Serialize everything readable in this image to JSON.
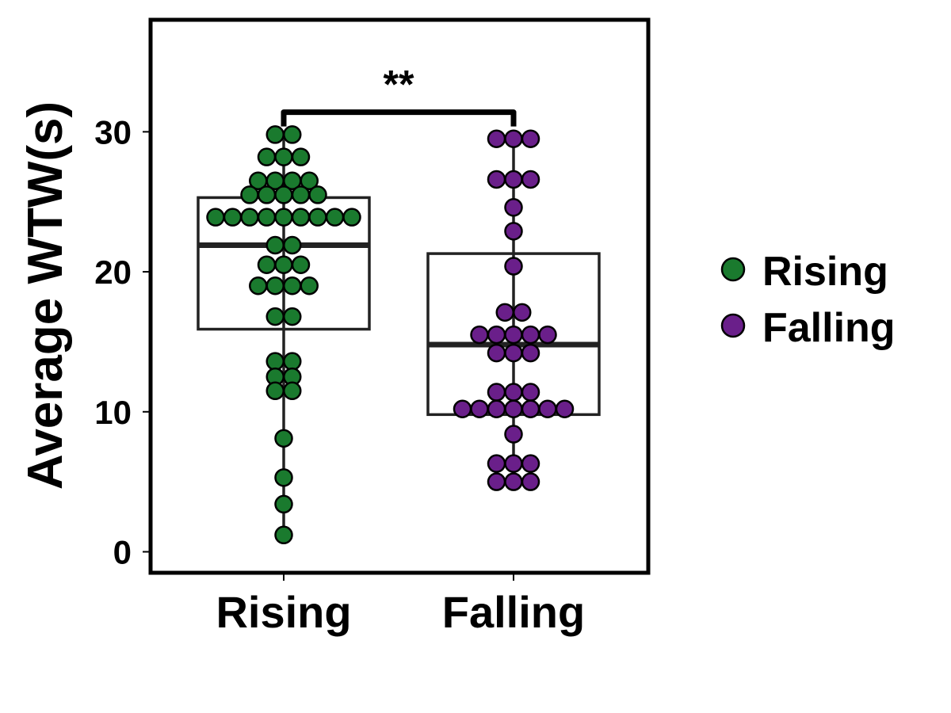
{
  "chart_data": {
    "type": "box",
    "categories": [
      "Rising",
      "Falling"
    ],
    "ylabel": "Average WTW(s)",
    "ylim": [
      -1.5,
      38
    ],
    "yticks": [
      0,
      10,
      20,
      30
    ],
    "colors": {
      "Rising": "#1a7a2e",
      "Falling": "#6a1f8a",
      "box_line": "#222222"
    },
    "series": [
      {
        "name": "Rising",
        "box": {
          "q1": 15.9,
          "median": 21.9,
          "q3": 25.3,
          "whisker_low": 1.2,
          "whisker_high": 29.8
        },
        "points": [
          {
            "y": 29.8,
            "n": 2
          },
          {
            "y": 28.2,
            "n": 3
          },
          {
            "y": 26.5,
            "n": 4
          },
          {
            "y": 25.5,
            "n": 5
          },
          {
            "y": 23.9,
            "n": 9
          },
          {
            "y": 21.9,
            "n": 2
          },
          {
            "y": 20.5,
            "n": 3
          },
          {
            "y": 19.0,
            "n": 4
          },
          {
            "y": 16.8,
            "n": 2
          },
          {
            "y": 13.6,
            "n": 2
          },
          {
            "y": 12.5,
            "n": 2
          },
          {
            "y": 11.5,
            "n": 2
          },
          {
            "y": 8.1,
            "n": 1
          },
          {
            "y": 5.3,
            "n": 1
          },
          {
            "y": 3.4,
            "n": 1
          },
          {
            "y": 1.2,
            "n": 1
          }
        ]
      },
      {
        "name": "Falling",
        "box": {
          "q1": 9.8,
          "median": 14.8,
          "q3": 21.3,
          "whisker_low": 5.0,
          "whisker_high": 29.5
        },
        "points": [
          {
            "y": 29.5,
            "n": 3
          },
          {
            "y": 26.6,
            "n": 3
          },
          {
            "y": 24.6,
            "n": 1
          },
          {
            "y": 22.9,
            "n": 1
          },
          {
            "y": 20.4,
            "n": 1
          },
          {
            "y": 17.1,
            "n": 2
          },
          {
            "y": 15.5,
            "n": 5
          },
          {
            "y": 14.2,
            "n": 3
          },
          {
            "y": 11.4,
            "n": 3
          },
          {
            "y": 10.2,
            "n": 7
          },
          {
            "y": 8.4,
            "n": 1
          },
          {
            "y": 6.3,
            "n": 3
          },
          {
            "y": 5.0,
            "n": 3
          }
        ]
      }
    ],
    "annotations": [
      {
        "type": "significance",
        "between": [
          "Rising",
          "Falling"
        ],
        "y": 31.4,
        "label": "**"
      }
    ],
    "legend": {
      "position": "right",
      "entries": [
        {
          "label": "Rising",
          "color": "#1a7a2e"
        },
        {
          "label": "Falling",
          "color": "#6a1f8a"
        }
      ]
    }
  }
}
